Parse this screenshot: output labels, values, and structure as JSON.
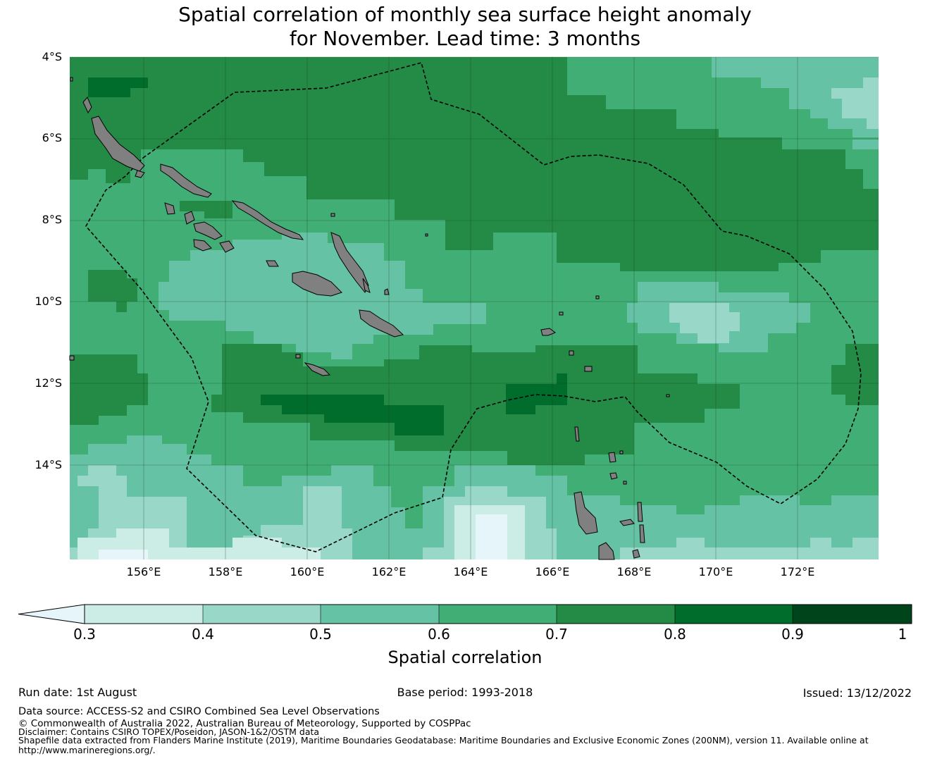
{
  "title": {
    "line1": "Spatial correlation of monthly sea surface height anomaly",
    "line2": "for November. Lead time: 3 months"
  },
  "axes": {
    "lon_range": [
      154.2,
      174.0
    ],
    "lat_range": [
      -4.0,
      -16.3
    ],
    "lat_ticks": [
      -4,
      -6,
      -8,
      -10,
      -12,
      -14
    ],
    "lat_tick_labels": [
      "4°S",
      "6°S",
      "8°S",
      "10°S",
      "12°S",
      "14°S"
    ],
    "lon_ticks": [
      156,
      158,
      160,
      162,
      164,
      166,
      168,
      170,
      172
    ],
    "lon_tick_labels": [
      "156°E",
      "158°E",
      "160°E",
      "162°E",
      "164°E",
      "166°E",
      "168°E",
      "170°E",
      "172°E"
    ],
    "gridlines": true
  },
  "colorbar": {
    "label": "Spatial correlation",
    "boundaries": [
      0.3,
      0.4,
      0.5,
      0.6,
      0.7,
      0.8,
      0.9,
      1
    ],
    "tick_labels": [
      "0.3",
      "0.4",
      "0.5",
      "0.6",
      "0.7",
      "0.8",
      "0.9",
      "1"
    ],
    "colors": [
      "#ccece6",
      "#99d8c9",
      "#66c2a4",
      "#41ae76",
      "#238b45",
      "#006d2c",
      "#00441b"
    ],
    "under_color": "#e5f5f9",
    "extend": "min",
    "orientation": "horizontal"
  },
  "map_colors": {
    "land": "#808080",
    "coastline": "#000000",
    "eez_boundary": "#000000",
    "gridline": "#1a3a1a"
  },
  "footer": {
    "run_date": "Run date: 1st August",
    "base_period": "Base period: 1993-2018",
    "issued": "Issued: 13/12/2022",
    "data_source": "Data source: ACCESS-S2 and CSIRO Combined Sea Level Observations",
    "copyright": "© Commonwealth of Australia 2022, Australian Bureau of Meteorology, Supported by COSPPac",
    "disclaimer": "Disclaimer: Contains CSIRO TOPEX/Poseidon, JASON-1&2/OSTM data",
    "shapefile": "Shapefile data extracted from Flanders Marine Institute (2019), Maritime Boundaries Geodatabase: Maritime Boundaries and Exclusive Economic Zones (200NM), version 11. Available online at",
    "url": "http://www.marineregions.org/."
  }
}
